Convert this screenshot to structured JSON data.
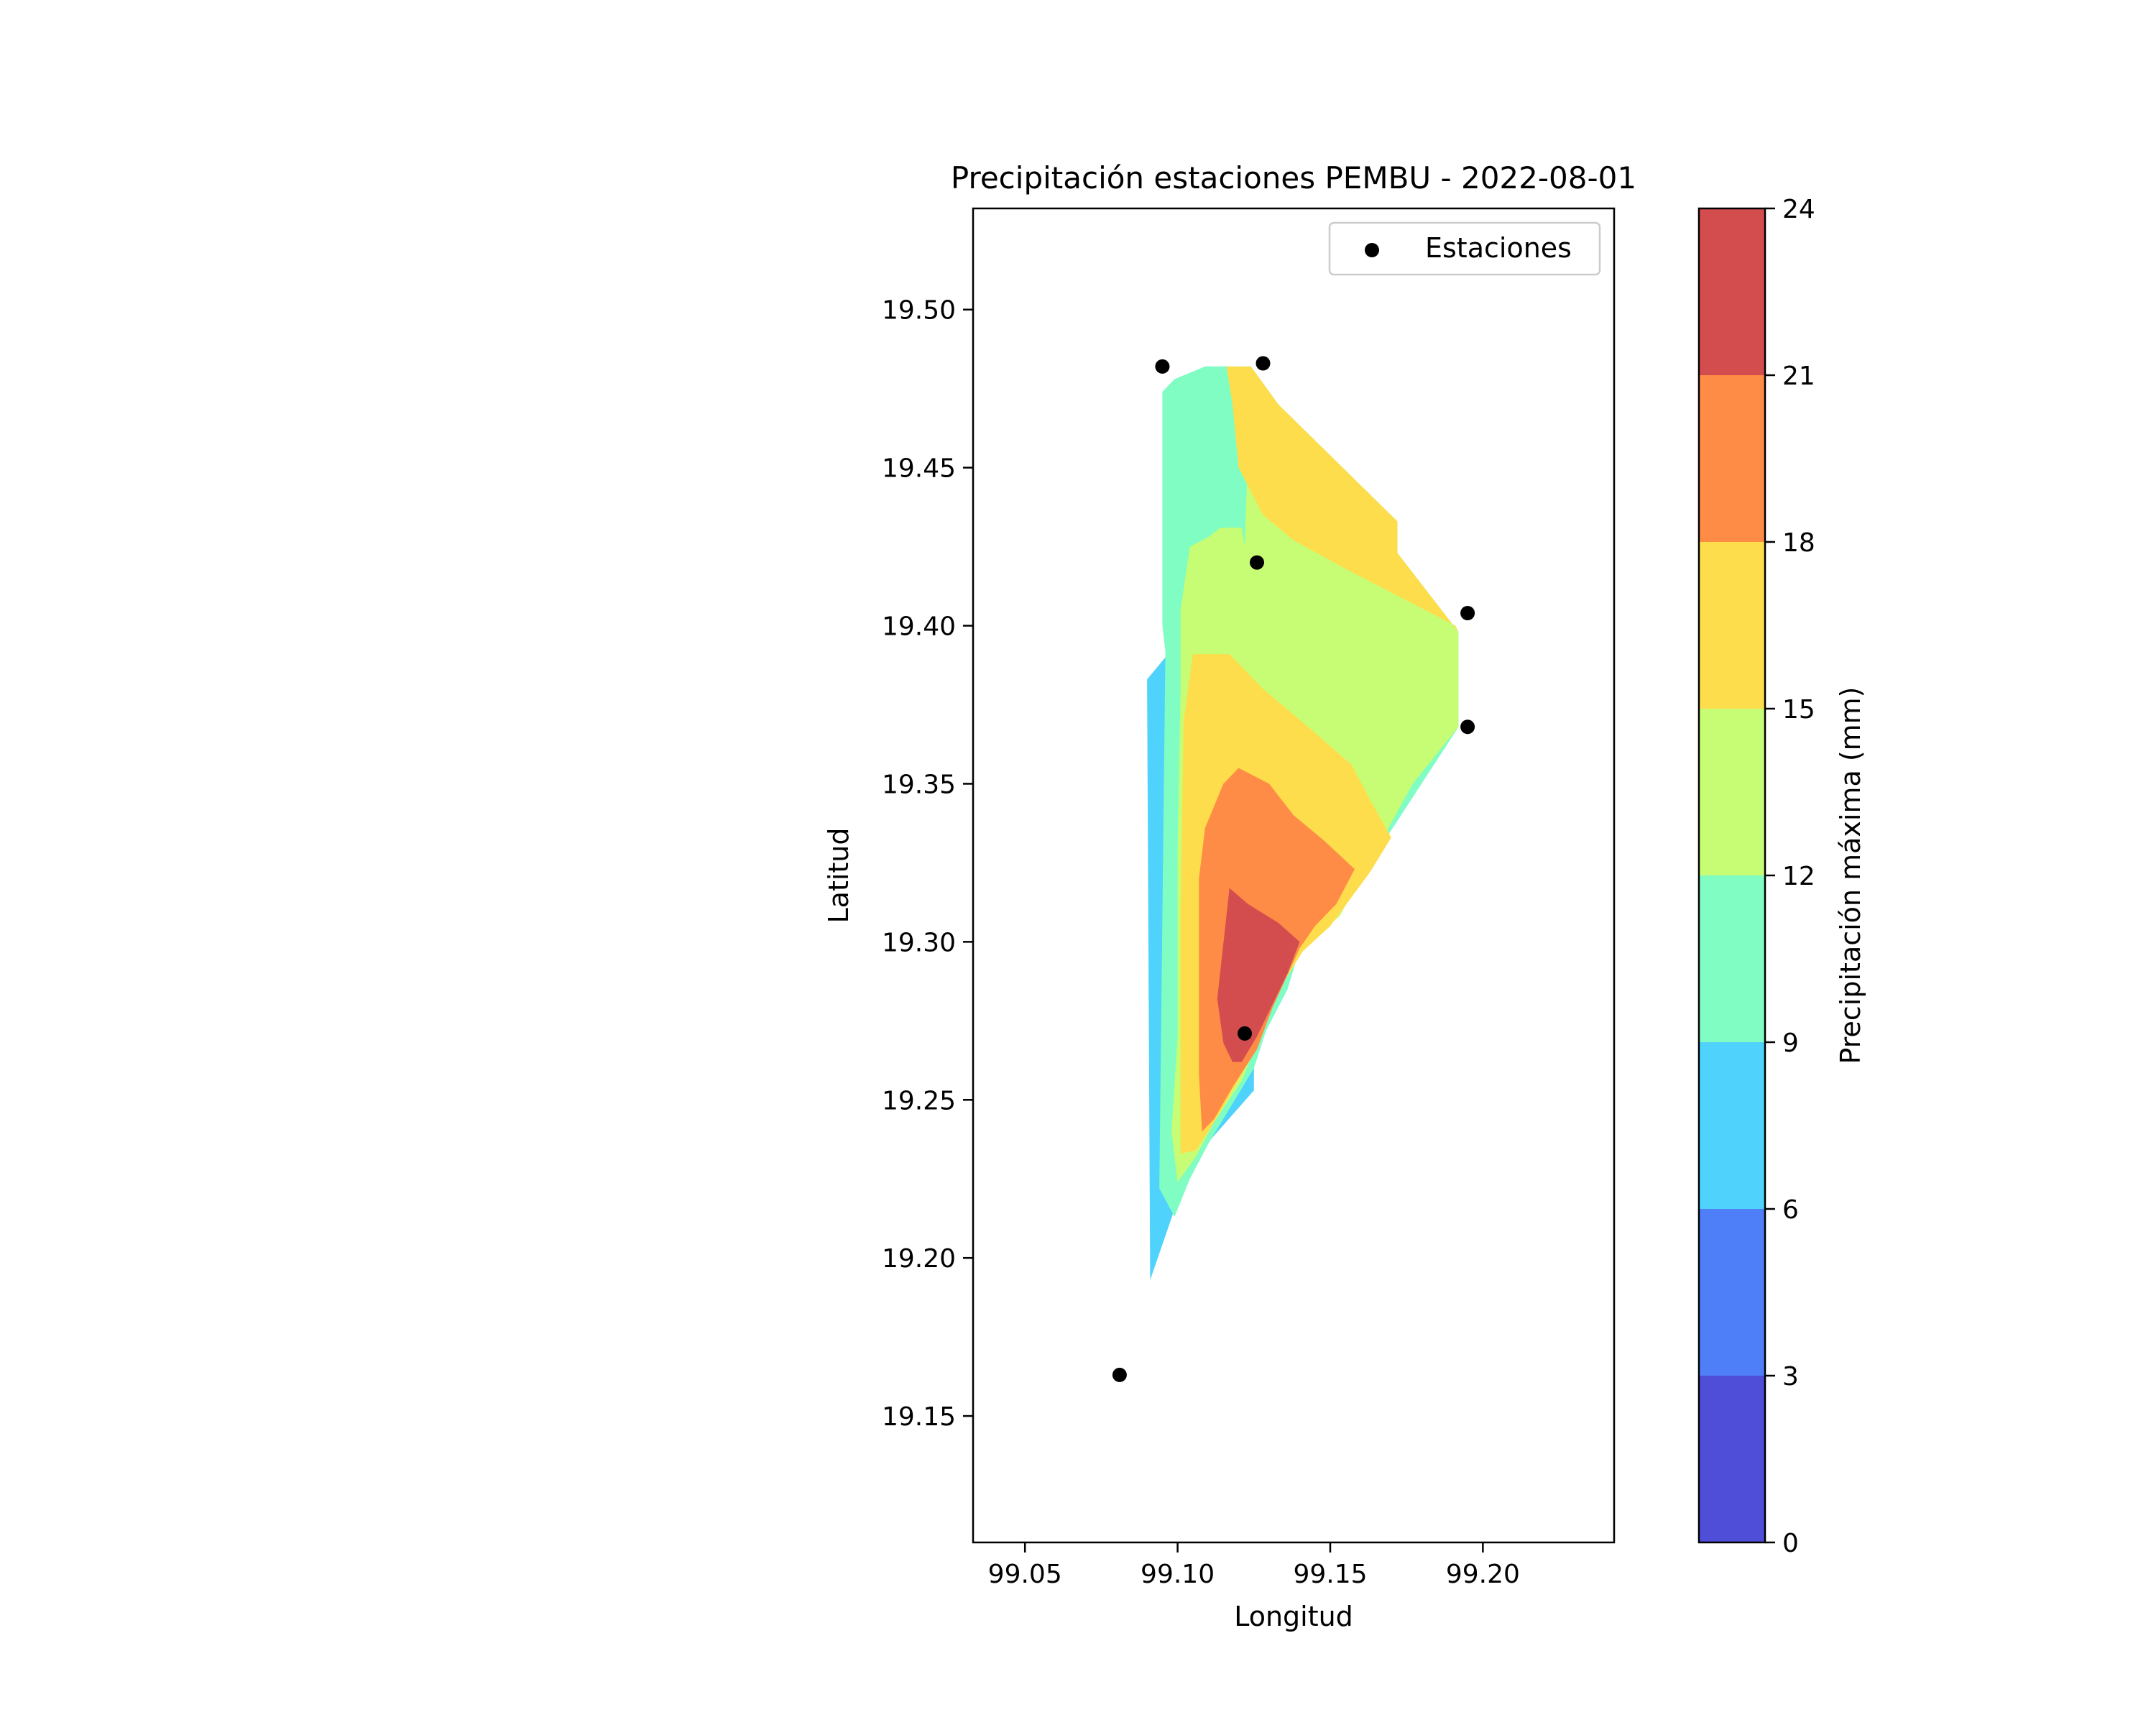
{
  "chart_data": {
    "type": "contour",
    "title": "Precipitación estaciones PEMBU - 2022-08-01",
    "xlabel": "Longitud",
    "ylabel": "Latitud",
    "xlim": [
      99.033,
      99.243
    ],
    "ylim": [
      19.11,
      19.532
    ],
    "xticks": [
      99.05,
      99.1,
      99.15,
      99.2
    ],
    "xtick_labels": [
      "99.05",
      "99.10",
      "99.15",
      "99.20"
    ],
    "yticks": [
      19.15,
      19.2,
      19.25,
      19.3,
      19.35,
      19.4,
      19.45,
      19.5
    ],
    "ytick_labels": [
      "19.15",
      "19.20",
      "19.25",
      "19.30",
      "19.35",
      "19.40",
      "19.45",
      "19.50"
    ],
    "grid": false,
    "legend": {
      "placement": "top-right",
      "entries": [
        "Estaciones"
      ]
    },
    "colorbar": {
      "label": "Precipitación máxima (mm)",
      "levels": [
        0,
        3,
        6,
        9,
        12,
        15,
        18,
        21,
        24
      ],
      "tick_labels": [
        "0",
        "3",
        "6",
        "9",
        "12",
        "15",
        "18",
        "21",
        "24"
      ],
      "colors": [
        "#4f4ed8",
        "#4f7ff8",
        "#4fd2fb",
        "#7ffdc2",
        "#c7fd74",
        "#fedd4c",
        "#fe8b46",
        "#d34d4e"
      ]
    },
    "stations": [
      {
        "lon": 99.095,
        "lat": 19.482
      },
      {
        "lon": 99.128,
        "lat": 19.483
      },
      {
        "lon": 99.126,
        "lat": 19.42
      },
      {
        "lon": 99.195,
        "lat": 19.404
      },
      {
        "lon": 99.195,
        "lat": 19.368
      },
      {
        "lon": 99.122,
        "lat": 19.271
      },
      {
        "lon": 99.081,
        "lat": 19.163
      }
    ],
    "contour_regions": [
      {
        "level_index": 2,
        "points": [
          [
            99.09,
            19.383
          ],
          [
            99.096,
            19.39
          ],
          [
            99.109,
            19.482
          ],
          [
            99.124,
            19.482
          ],
          [
            99.133,
            19.47
          ],
          [
            99.172,
            19.433
          ],
          [
            99.172,
            19.423
          ],
          [
            99.192,
            19.398
          ],
          [
            99.192,
            19.368
          ],
          [
            99.161,
            19.322
          ],
          [
            99.14,
            19.298
          ],
          [
            99.136,
            19.285
          ],
          [
            99.129,
            19.272
          ],
          [
            99.125,
            19.262
          ],
          [
            99.125,
            19.253
          ],
          [
            99.105,
            19.231
          ],
          [
            99.101,
            19.221
          ],
          [
            99.091,
            19.193
          ]
        ]
      },
      {
        "level_index": 3,
        "points": [
          [
            99.095,
            19.474
          ],
          [
            99.099,
            19.478
          ],
          [
            99.109,
            19.482
          ],
          [
            99.124,
            19.482
          ],
          [
            99.133,
            19.47
          ],
          [
            99.172,
            19.433
          ],
          [
            99.172,
            19.423
          ],
          [
            99.192,
            19.398
          ],
          [
            99.192,
            19.368
          ],
          [
            99.161,
            19.322
          ],
          [
            99.14,
            19.298
          ],
          [
            99.136,
            19.285
          ],
          [
            99.129,
            19.272
          ],
          [
            99.125,
            19.26
          ],
          [
            99.11,
            19.236
          ],
          [
            99.104,
            19.225
          ],
          [
            99.099,
            19.213
          ],
          [
            99.094,
            19.222
          ],
          [
            99.096,
            19.392
          ],
          [
            99.095,
            19.4
          ]
        ]
      },
      {
        "level_index": 4,
        "points": [
          [
            99.104,
            19.425
          ],
          [
            99.11,
            19.428
          ],
          [
            99.114,
            19.431
          ],
          [
            99.121,
            19.431
          ],
          [
            99.122,
            19.425
          ],
          [
            99.124,
            19.482
          ],
          [
            99.133,
            19.47
          ],
          [
            99.172,
            19.433
          ],
          [
            99.172,
            19.423
          ],
          [
            99.192,
            19.398
          ],
          [
            99.192,
            19.368
          ],
          [
            99.177,
            19.35
          ],
          [
            99.161,
            19.322
          ],
          [
            99.153,
            19.308
          ],
          [
            99.14,
            19.298
          ],
          [
            99.132,
            19.283
          ],
          [
            99.126,
            19.268
          ],
          [
            99.121,
            19.256
          ],
          [
            99.112,
            19.243
          ],
          [
            99.106,
            19.232
          ],
          [
            99.1,
            19.224
          ],
          [
            99.098,
            19.24
          ],
          [
            99.1,
            19.27
          ],
          [
            99.1,
            19.33
          ],
          [
            99.101,
            19.38
          ],
          [
            99.101,
            19.405
          ]
        ]
      },
      {
        "level_index": 5,
        "points": [
          [
            99.116,
            19.482
          ],
          [
            99.124,
            19.482
          ],
          [
            99.133,
            19.47
          ],
          [
            99.172,
            19.433
          ],
          [
            99.172,
            19.423
          ],
          [
            99.192,
            19.398
          ],
          [
            99.191,
            19.4
          ],
          [
            99.155,
            19.418
          ],
          [
            99.138,
            19.427
          ],
          [
            99.128,
            19.435
          ],
          [
            99.12,
            19.45
          ],
          [
            99.118,
            19.47
          ]
        ]
      },
      {
        "level_index": 5,
        "points": [
          [
            99.105,
            19.391
          ],
          [
            99.117,
            19.391
          ],
          [
            99.128,
            19.38
          ],
          [
            99.144,
            19.367
          ],
          [
            99.157,
            19.356
          ],
          [
            99.163,
            19.345
          ],
          [
            99.17,
            19.333
          ],
          [
            99.163,
            19.322
          ],
          [
            99.15,
            19.305
          ],
          [
            99.141,
            19.297
          ],
          [
            99.132,
            19.283
          ],
          [
            99.126,
            19.268
          ],
          [
            99.121,
            19.258
          ],
          [
            99.112,
            19.243
          ],
          [
            99.106,
            19.234
          ],
          [
            99.101,
            19.233
          ],
          [
            99.101,
            19.245
          ],
          [
            99.101,
            19.31
          ],
          [
            99.102,
            19.37
          ]
        ]
      },
      {
        "level_index": 6,
        "points": [
          [
            99.109,
            19.336
          ],
          [
            99.115,
            19.35
          ],
          [
            99.12,
            19.355
          ],
          [
            99.13,
            19.35
          ],
          [
            99.138,
            19.34
          ],
          [
            99.148,
            19.332
          ],
          [
            99.158,
            19.323
          ],
          [
            99.152,
            19.312
          ],
          [
            99.145,
            19.305
          ],
          [
            99.14,
            19.298
          ],
          [
            99.131,
            19.279
          ],
          [
            99.126,
            19.266
          ],
          [
            99.118,
            19.254
          ],
          [
            99.112,
            19.244
          ],
          [
            99.108,
            19.24
          ],
          [
            99.107,
            19.258
          ],
          [
            99.107,
            19.29
          ],
          [
            99.107,
            19.32
          ]
        ]
      },
      {
        "level_index": 7,
        "points": [
          [
            99.113,
            19.282
          ],
          [
            99.117,
            19.317
          ],
          [
            99.123,
            19.312
          ],
          [
            99.133,
            19.306
          ],
          [
            99.14,
            19.3
          ],
          [
            99.136,
            19.29
          ],
          [
            99.131,
            19.28
          ],
          [
            99.126,
            19.27
          ],
          [
            99.121,
            19.262
          ],
          [
            99.118,
            19.262
          ],
          [
            99.115,
            19.268
          ]
        ]
      }
    ]
  }
}
